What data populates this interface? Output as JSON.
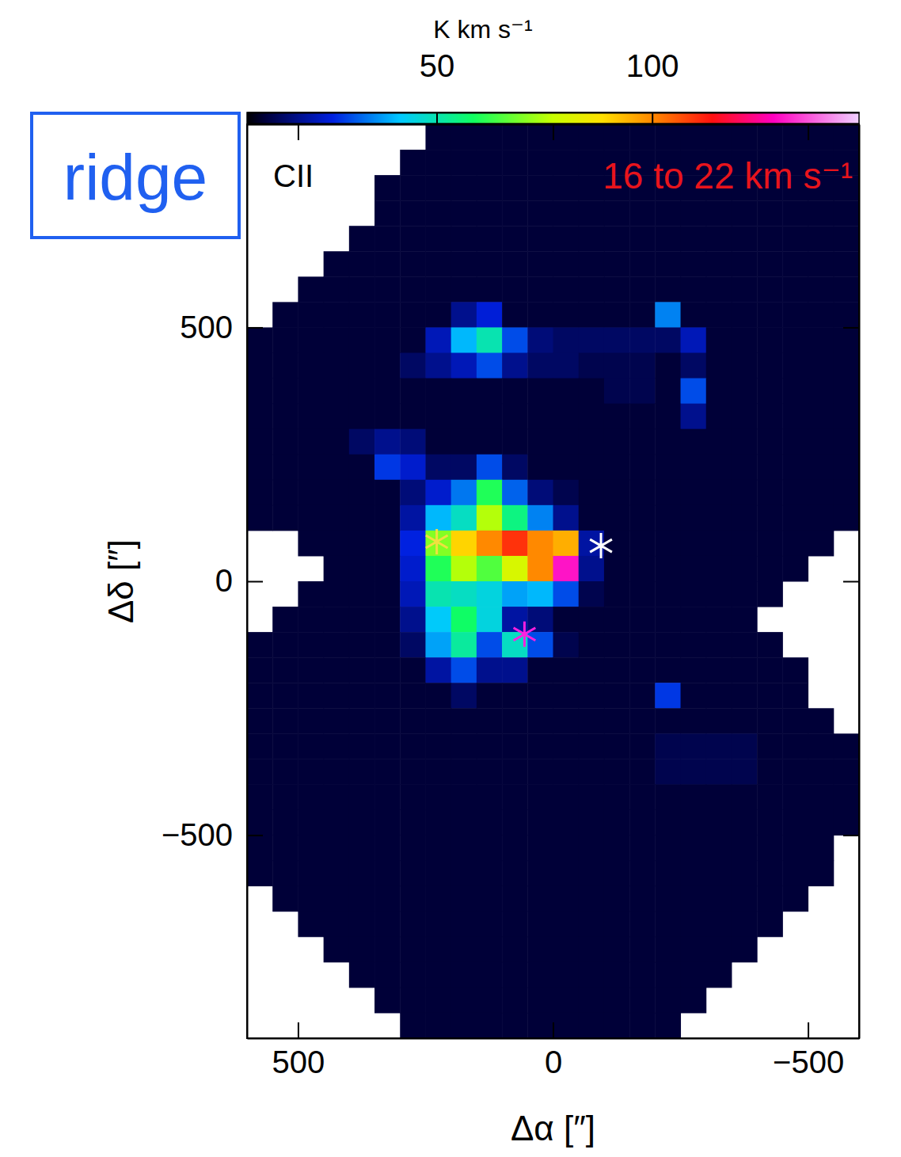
{
  "chart_data": {
    "type": "heatmap",
    "panel_label": "ridge",
    "title": "CII",
    "subtitle": "16 to 22 km s⁻¹",
    "x_label": "Δα [″]",
    "y_label": "Δδ [″]",
    "xlim": [
      600,
      -600
    ],
    "ylim": [
      -900,
      900
    ],
    "xticks": [
      500,
      0,
      {
        "value": -500,
        "label": "−500"
      }
    ],
    "yticks": [
      500,
      0,
      {
        "value": -500,
        "label": "−500"
      }
    ],
    "colorbar": {
      "label": "K km s⁻¹",
      "range": [
        6,
        148
      ],
      "ticks": [
        50,
        100
      ]
    },
    "x": [
      575,
      525,
      475,
      425,
      375,
      325,
      275,
      225,
      175,
      125,
      75,
      25,
      -25,
      -75,
      -125,
      -175,
      -225,
      -275,
      -325,
      -375,
      -425,
      -475,
      -525,
      -575
    ],
    "y": [
      875,
      825,
      775,
      725,
      675,
      625,
      575,
      525,
      475,
      425,
      375,
      325,
      275,
      225,
      175,
      125,
      75,
      25,
      -25,
      -75,
      -125,
      -175,
      -225,
      -275,
      -325,
      -375,
      -425,
      -475,
      -525,
      -575,
      -625,
      -675,
      -725,
      -775,
      -825,
      -875
    ],
    "values": [
      [
        null,
        null,
        null,
        null,
        null,
        null,
        null,
        10,
        10,
        10,
        10,
        10,
        10,
        10,
        10,
        10,
        10,
        10,
        10,
        10,
        10,
        10,
        10,
        10
      ],
      [
        null,
        null,
        null,
        null,
        null,
        null,
        10,
        10,
        10,
        10,
        10,
        10,
        10,
        10,
        10,
        10,
        10,
        10,
        10,
        10,
        10,
        10,
        10,
        10
      ],
      [
        null,
        null,
        null,
        null,
        null,
        10,
        10,
        10,
        10,
        10,
        10,
        10,
        10,
        10,
        10,
        10,
        10,
        10,
        10,
        10,
        10,
        10,
        10,
        10
      ],
      [
        null,
        null,
        null,
        null,
        null,
        10,
        10,
        10,
        10,
        10,
        10,
        10,
        10,
        10,
        10,
        10,
        10,
        10,
        10,
        10,
        10,
        10,
        10,
        10
      ],
      [
        null,
        null,
        null,
        null,
        10,
        10,
        10,
        10,
        10,
        10,
        10,
        10,
        10,
        10,
        10,
        10,
        10,
        10,
        10,
        10,
        10,
        10,
        10,
        10
      ],
      [
        null,
        null,
        null,
        10,
        10,
        10,
        10,
        10,
        10,
        10,
        10,
        10,
        10,
        10,
        10,
        10,
        10,
        10,
        10,
        10,
        10,
        10,
        10,
        10
      ],
      [
        null,
        null,
        10,
        10,
        10,
        10,
        10,
        10,
        10,
        10,
        10,
        10,
        10,
        10,
        10,
        10,
        10,
        10,
        10,
        10,
        10,
        10,
        10,
        10
      ],
      [
        null,
        10,
        10,
        10,
        10,
        10,
        10,
        10,
        18,
        25,
        10,
        10,
        10,
        10,
        10,
        10,
        35,
        10,
        10,
        10,
        10,
        10,
        10,
        10
      ],
      [
        10,
        10,
        10,
        10,
        10,
        10,
        10,
        22,
        40,
        50,
        30,
        16,
        14,
        14,
        14,
        14,
        14,
        22,
        10,
        10,
        10,
        10,
        10,
        10
      ],
      [
        10,
        10,
        10,
        10,
        10,
        10,
        14,
        18,
        22,
        30,
        18,
        14,
        14,
        12,
        12,
        12,
        10,
        14,
        10,
        10,
        10,
        10,
        10,
        10
      ],
      [
        10,
        10,
        10,
        10,
        10,
        10,
        10,
        10,
        10,
        10,
        10,
        10,
        10,
        10,
        12,
        12,
        10,
        30,
        10,
        10,
        10,
        10,
        10,
        10
      ],
      [
        10,
        10,
        10,
        10,
        10,
        10,
        10,
        10,
        10,
        10,
        10,
        10,
        10,
        10,
        10,
        10,
        10,
        18,
        10,
        10,
        10,
        10,
        10,
        10
      ],
      [
        10,
        10,
        10,
        10,
        14,
        18,
        16,
        10,
        10,
        10,
        10,
        10,
        10,
        10,
        10,
        10,
        10,
        10,
        10,
        10,
        10,
        10,
        10,
        10
      ],
      [
        10,
        10,
        10,
        10,
        10,
        28,
        24,
        14,
        14,
        30,
        14,
        10,
        10,
        10,
        10,
        10,
        10,
        10,
        10,
        10,
        10,
        10,
        10,
        10
      ],
      [
        10,
        10,
        10,
        10,
        10,
        10,
        16,
        24,
        34,
        60,
        32,
        16,
        12,
        10,
        10,
        10,
        10,
        10,
        10,
        10,
        10,
        10,
        10,
        10
      ],
      [
        10,
        10,
        10,
        10,
        10,
        10,
        20,
        40,
        48,
        75,
        55,
        35,
        18,
        10,
        10,
        10,
        10,
        10,
        10,
        10,
        10,
        10,
        10,
        10
      ],
      [
        null,
        null,
        10,
        10,
        10,
        10,
        26,
        70,
        90,
        100,
        110,
        100,
        95,
        20,
        10,
        10,
        10,
        10,
        10,
        10,
        10,
        10,
        10,
        null
      ],
      [
        null,
        null,
        null,
        10,
        10,
        10,
        24,
        60,
        75,
        65,
        80,
        100,
        130,
        18,
        10,
        10,
        10,
        10,
        10,
        10,
        10,
        10,
        null,
        null
      ],
      [
        null,
        null,
        10,
        10,
        10,
        10,
        22,
        50,
        48,
        45,
        38,
        40,
        30,
        12,
        10,
        10,
        10,
        10,
        10,
        10,
        10,
        null,
        null,
        null
      ],
      [
        null,
        10,
        10,
        10,
        10,
        10,
        18,
        42,
        58,
        45,
        20,
        16,
        10,
        10,
        10,
        10,
        10,
        10,
        10,
        10,
        null,
        null,
        null,
        null
      ],
      [
        10,
        10,
        10,
        10,
        10,
        10,
        14,
        38,
        52,
        30,
        48,
        30,
        12,
        10,
        10,
        10,
        10,
        10,
        10,
        10,
        10,
        null,
        null,
        null
      ],
      [
        10,
        10,
        10,
        10,
        10,
        10,
        10,
        20,
        30,
        18,
        18,
        10,
        10,
        10,
        10,
        10,
        10,
        10,
        10,
        10,
        10,
        10,
        null,
        null
      ],
      [
        10,
        10,
        10,
        10,
        10,
        10,
        10,
        10,
        14,
        10,
        10,
        10,
        10,
        10,
        10,
        10,
        28,
        10,
        10,
        10,
        10,
        10,
        null,
        null
      ],
      [
        10,
        10,
        10,
        10,
        10,
        10,
        10,
        10,
        10,
        10,
        10,
        10,
        10,
        10,
        10,
        10,
        10,
        10,
        10,
        10,
        10,
        10,
        10,
        null
      ],
      [
        10,
        10,
        10,
        10,
        10,
        10,
        10,
        10,
        10,
        10,
        10,
        10,
        10,
        10,
        10,
        10,
        12,
        12,
        12,
        12,
        10,
        10,
        10,
        10
      ],
      [
        10,
        10,
        10,
        10,
        10,
        10,
        10,
        10,
        10,
        10,
        10,
        10,
        10,
        10,
        10,
        10,
        12,
        12,
        12,
        12,
        10,
        10,
        10,
        10
      ],
      [
        10,
        10,
        10,
        10,
        10,
        10,
        10,
        10,
        10,
        10,
        10,
        10,
        10,
        10,
        10,
        10,
        10,
        10,
        10,
        10,
        10,
        10,
        10,
        10
      ],
      [
        10,
        10,
        10,
        10,
        10,
        10,
        10,
        10,
        10,
        10,
        10,
        10,
        10,
        10,
        10,
        10,
        10,
        10,
        10,
        10,
        10,
        10,
        10,
        10
      ],
      [
        10,
        10,
        10,
        10,
        10,
        10,
        10,
        10,
        10,
        10,
        10,
        10,
        10,
        10,
        10,
        10,
        10,
        10,
        10,
        10,
        10,
        10,
        10,
        null
      ],
      [
        10,
        10,
        10,
        10,
        10,
        10,
        10,
        10,
        10,
        10,
        10,
        10,
        10,
        10,
        10,
        10,
        10,
        10,
        10,
        10,
        10,
        10,
        10,
        null
      ],
      [
        null,
        10,
        10,
        10,
        10,
        10,
        10,
        10,
        10,
        10,
        10,
        10,
        10,
        10,
        10,
        10,
        10,
        10,
        10,
        10,
        10,
        10,
        null,
        null
      ],
      [
        null,
        null,
        10,
        10,
        10,
        10,
        10,
        10,
        10,
        10,
        10,
        10,
        10,
        10,
        10,
        10,
        10,
        10,
        10,
        10,
        10,
        null,
        null,
        null
      ],
      [
        null,
        null,
        null,
        10,
        10,
        10,
        10,
        10,
        10,
        10,
        10,
        10,
        10,
        10,
        10,
        10,
        10,
        10,
        10,
        10,
        null,
        null,
        null,
        null
      ],
      [
        null,
        null,
        null,
        null,
        10,
        10,
        10,
        10,
        10,
        10,
        10,
        10,
        10,
        10,
        10,
        10,
        10,
        10,
        10,
        null,
        null,
        null,
        null,
        null
      ],
      [
        null,
        null,
        null,
        null,
        null,
        10,
        10,
        10,
        10,
        10,
        10,
        10,
        10,
        10,
        10,
        10,
        10,
        10,
        null,
        null,
        null,
        null,
        null,
        null
      ],
      [
        null,
        null,
        null,
        null,
        null,
        null,
        10,
        10,
        10,
        10,
        10,
        10,
        10,
        10,
        10,
        10,
        10,
        null,
        null,
        null,
        null,
        null,
        null,
        null
      ]
    ],
    "markers": [
      {
        "x": 228,
        "y": 78,
        "color": "#f0e040",
        "marker": "star"
      },
      {
        "x": -94,
        "y": 70,
        "color": "#ffffff",
        "marker": "star"
      },
      {
        "x": 56,
        "y": -104,
        "color": "#ff20e0",
        "marker": "star"
      }
    ]
  }
}
